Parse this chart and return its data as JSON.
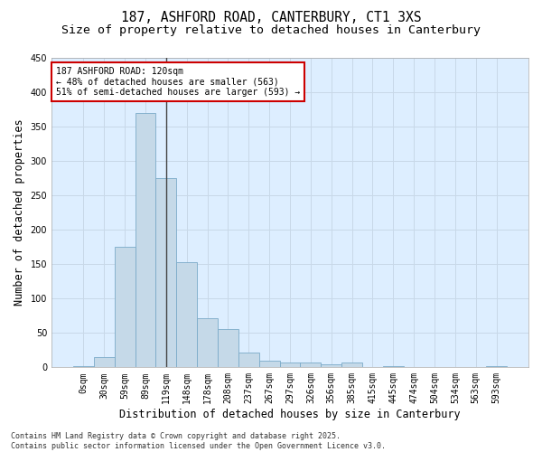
{
  "title_line1": "187, ASHFORD ROAD, CANTERBURY, CT1 3XS",
  "title_line2": "Size of property relative to detached houses in Canterbury",
  "xlabel": "Distribution of detached houses by size in Canterbury",
  "ylabel": "Number of detached properties",
  "categories": [
    "0sqm",
    "30sqm",
    "59sqm",
    "89sqm",
    "119sqm",
    "148sqm",
    "178sqm",
    "208sqm",
    "237sqm",
    "267sqm",
    "297sqm",
    "326sqm",
    "356sqm",
    "385sqm",
    "415sqm",
    "445sqm",
    "474sqm",
    "504sqm",
    "534sqm",
    "563sqm",
    "593sqm"
  ],
  "values": [
    2,
    15,
    175,
    370,
    275,
    153,
    72,
    55,
    22,
    10,
    7,
    7,
    5,
    7,
    0,
    2,
    0,
    0,
    0,
    0,
    2
  ],
  "bar_color": "#c5d9e8",
  "bar_edge_color": "#7aaac8",
  "bar_edge_width": 0.6,
  "grid_color": "#c8d8e8",
  "bg_color": "#ddeeff",
  "vline_x": 4,
  "vline_color": "#444444",
  "ylim": [
    0,
    450
  ],
  "yticks": [
    0,
    50,
    100,
    150,
    200,
    250,
    300,
    350,
    400,
    450
  ],
  "annotation_text": "187 ASHFORD ROAD: 120sqm\n← 48% of detached houses are smaller (563)\n51% of semi-detached houses are larger (593) →",
  "annotation_box_color": "#ffffff",
  "annotation_box_edge": "#cc0000",
  "footer_text": "Contains HM Land Registry data © Crown copyright and database right 2025.\nContains public sector information licensed under the Open Government Licence v3.0.",
  "title_fontsize": 10.5,
  "subtitle_fontsize": 9.5,
  "tick_fontsize": 7,
  "ylabel_fontsize": 8.5,
  "xlabel_fontsize": 8.5,
  "annotation_fontsize": 7,
  "footer_fontsize": 6
}
